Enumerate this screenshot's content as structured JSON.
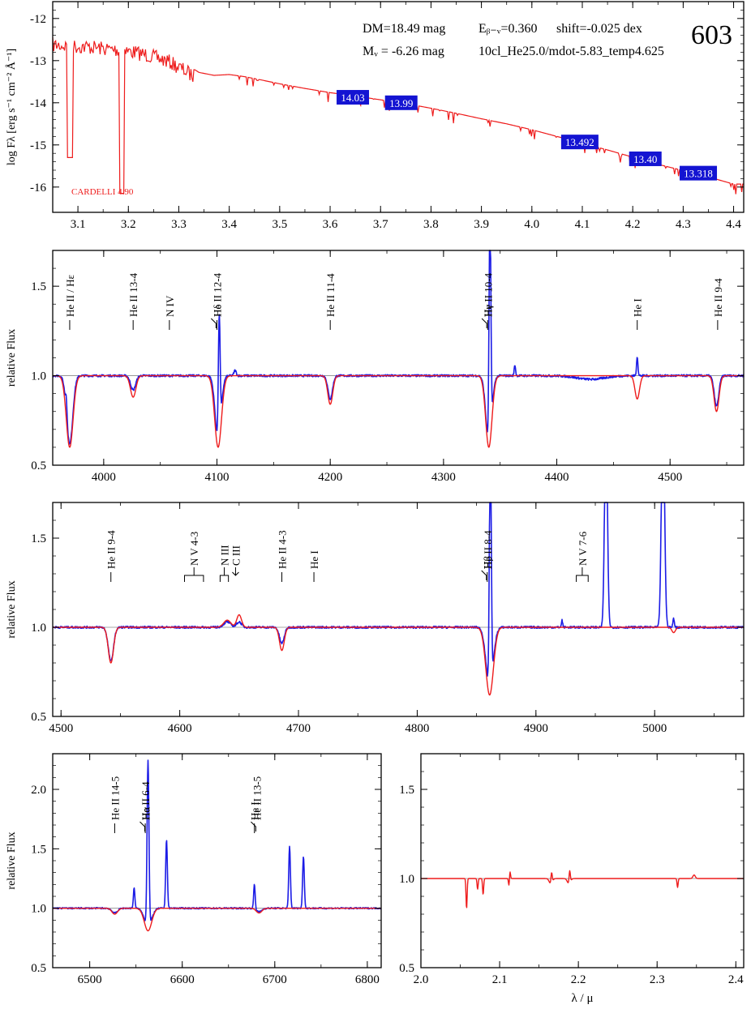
{
  "header": {
    "dm": "DM=18.49 mag",
    "mv": "Mᵥ =  -6.26 mag",
    "ebv": "Eᵦ₋ᵥ=0.360",
    "shift": "shift=-0.025 dex",
    "model": "10cl_He25.0/mdot-5.83_temp4.625",
    "star_id": "603",
    "reddening_law": "CARDELLI 4.90"
  },
  "colors": {
    "model": "#ee1c1c",
    "observed": "#1c1ce6",
    "box": "#1414d2",
    "ref": "#888888"
  },
  "chart_data": [
    {
      "id": "sed",
      "type": "line",
      "ylabel": "log Fλ [erg s⁻¹ cm⁻² Å⁻¹]",
      "xlim": [
        3.05,
        4.42
      ],
      "ylim": [
        -16.6,
        -11.6
      ],
      "xticks": [
        3.1,
        3.2,
        3.3,
        3.4,
        3.5,
        3.6,
        3.7,
        3.8,
        3.9,
        4.0,
        4.1,
        4.2,
        4.3,
        4.4
      ],
      "xticklabels": [
        "3.1",
        "3.2",
        "3.3",
        "3.4",
        "3.5",
        "3.6",
        "3.7",
        "3.8",
        "3.9",
        "4.0",
        "4.1",
        "4.2",
        "4.3",
        "4.4"
      ],
      "yticks": [
        -12,
        -13,
        -14,
        -15,
        -16
      ],
      "yticklabels": [
        "-12",
        "-13",
        "-14",
        "-15",
        "-16"
      ],
      "model_sed": {
        "x": [
          3.05,
          3.08,
          3.12,
          3.16,
          3.2,
          3.24,
          3.28,
          3.31,
          3.34,
          3.37,
          3.4,
          3.43,
          3.46,
          3.5,
          3.55,
          3.6,
          3.65,
          3.7,
          3.75,
          3.8,
          3.85,
          3.9,
          3.95,
          4.0,
          4.05,
          4.1,
          4.15,
          4.2,
          4.25,
          4.3,
          4.35,
          4.4
        ],
        "y": [
          -12.45,
          -12.48,
          -12.5,
          -12.55,
          -12.6,
          -12.7,
          -12.85,
          -13.05,
          -13.28,
          -13.35,
          -13.33,
          -13.38,
          -13.45,
          -13.55,
          -13.66,
          -13.76,
          -13.84,
          -13.93,
          -14.02,
          -14.13,
          -14.25,
          -14.38,
          -14.5,
          -14.64,
          -14.8,
          -14.96,
          -15.12,
          -15.29,
          -15.46,
          -15.61,
          -15.76,
          -15.93
        ]
      },
      "photometry": [
        {
          "x": 3.645,
          "y": -13.87,
          "label": "14.03"
        },
        {
          "x": 3.741,
          "y": -14.0,
          "label": "13.99"
        },
        {
          "x": 4.095,
          "y": -14.93,
          "label": "13.492"
        },
        {
          "x": 4.225,
          "y": -15.33,
          "label": "13.40"
        },
        {
          "x": 4.33,
          "y": -15.67,
          "label": "13.318"
        }
      ]
    },
    {
      "id": "blue-4000",
      "type": "line",
      "ylabel": "relative Flux",
      "xlim": [
        3955,
        4565
      ],
      "ylim": [
        0.5,
        1.7
      ],
      "xticks": [
        4000,
        4100,
        4200,
        4300,
        4400,
        4500
      ],
      "xticklabels": [
        "4000",
        "4100",
        "4200",
        "4300",
        "4400",
        "4500"
      ],
      "yticks": [
        0.5,
        1.0,
        1.5
      ],
      "yticklabels": [
        "0.5",
        "1.0",
        "1.5"
      ],
      "line_ids": [
        {
          "x": 3970,
          "label": "He II / Hε"
        },
        {
          "x": 4026,
          "label": "He II 13-4"
        },
        {
          "x": 4058,
          "label": "N IV"
        },
        {
          "x": 4100,
          "label": "He II 12-4"
        },
        {
          "x": 4102,
          "label": "Hδ",
          "tick": "leaning"
        },
        {
          "x": 4200,
          "label": "He II 11-4"
        },
        {
          "x": 4339,
          "label": "He II 10-4"
        },
        {
          "x": 4341,
          "label": "Hγ",
          "tick": "leaning"
        },
        {
          "x": 4471,
          "label": "He I"
        },
        {
          "x": 4542,
          "label": "He II 9-4"
        }
      ],
      "model_lines": [
        {
          "c": 3970,
          "depth": 0.4,
          "w": 3.0
        },
        {
          "c": 4026,
          "depth": 0.12,
          "w": 2.4
        },
        {
          "c": 4101,
          "depth": 0.4,
          "w": 3.0
        },
        {
          "c": 4200,
          "depth": 0.16,
          "w": 2.2
        },
        {
          "c": 4340,
          "depth": 0.4,
          "w": 2.8
        },
        {
          "c": 4471,
          "depth": 0.13,
          "w": 2.0
        },
        {
          "c": 4541,
          "depth": 0.2,
          "w": 2.2
        }
      ],
      "observed_lines": [
        {
          "c": 3970,
          "depth": 0.38,
          "w": 2.7
        },
        {
          "c": 3967,
          "depth": -0.09,
          "w": 0.6
        },
        {
          "c": 4026,
          "depth": 0.08,
          "w": 2.2
        },
        {
          "c": 4101,
          "depth": 0.36,
          "w": 2.6
        },
        {
          "c": 4102,
          "depth": -0.68,
          "w": 0.8
        },
        {
          "c": 4116,
          "depth": -0.03,
          "w": 1.0
        },
        {
          "c": 4200,
          "depth": 0.13,
          "w": 2.0
        },
        {
          "c": 4340,
          "depth": 0.38,
          "w": 2.6
        },
        {
          "c": 4341,
          "depth": -1.3,
          "w": 0.8
        },
        {
          "c": 4363,
          "depth": -0.06,
          "w": 0.6
        },
        {
          "c": 4471,
          "depth": -0.11,
          "w": 0.6
        },
        {
          "c": 4541,
          "depth": 0.17,
          "w": 2.0
        },
        {
          "c": 4430,
          "depth": 0.02,
          "w": 12.0
        }
      ]
    },
    {
      "id": "blue-4700",
      "type": "line",
      "ylabel": "relative Flux",
      "xlim": [
        4493,
        5075
      ],
      "ylim": [
        0.5,
        1.7
      ],
      "xticks": [
        4500,
        4600,
        4700,
        4800,
        4900,
        5000
      ],
      "xticklabels": [
        "4500",
        "4600",
        "4700",
        "4800",
        "4900",
        "5000"
      ],
      "yticks": [
        0.5,
        1.0,
        1.5
      ],
      "yticklabels": [
        "0.5",
        "1.0",
        "1.5"
      ],
      "line_ids": [
        {
          "x": 4542,
          "label": "He II 9-4"
        },
        {
          "x": 4604,
          "label": "N V 4-3",
          "tick": "bracket",
          "x2": 4620
        },
        {
          "x": 4634,
          "label": "N III",
          "tick": "bracket",
          "x2": 4641
        },
        {
          "x": 4647,
          "label": "C III",
          "tick": "fork"
        },
        {
          "x": 4686,
          "label": "He II 4-3"
        },
        {
          "x": 4713,
          "label": "He I"
        },
        {
          "x": 4859,
          "label": "He II 8-4"
        },
        {
          "x": 4861,
          "label": "Hβ",
          "tick": "leaning"
        },
        {
          "x": 4934,
          "label": "N V 7-6",
          "tick": "bracket",
          "x2": 4944
        }
      ],
      "model_lines": [
        {
          "c": 4542,
          "depth": 0.2,
          "w": 2.2
        },
        {
          "c": 4640,
          "depth": -0.04,
          "w": 3.0
        },
        {
          "c": 4650,
          "depth": -0.07,
          "w": 2.0
        },
        {
          "c": 4686,
          "depth": 0.13,
          "w": 2.0
        },
        {
          "c": 4861,
          "depth": 0.38,
          "w": 3.2
        },
        {
          "c": 5016,
          "depth": 0.03,
          "w": 1.5
        }
      ],
      "observed_lines": [
        {
          "c": 4542,
          "depth": 0.19,
          "w": 2.2
        },
        {
          "c": 4640,
          "depth": -0.03,
          "w": 3.0
        },
        {
          "c": 4650,
          "depth": -0.03,
          "w": 2.0
        },
        {
          "c": 4686,
          "depth": 0.09,
          "w": 2.0
        },
        {
          "c": 4861,
          "depth": 0.34,
          "w": 3.0
        },
        {
          "c": 4861.6,
          "depth": -1.4,
          "w": 0.8
        },
        {
          "c": 4922,
          "depth": -0.04,
          "w": 0.5
        },
        {
          "c": 4959,
          "depth": -1.2,
          "w": 1.2
        },
        {
          "c": 5007,
          "depth": -1.3,
          "w": 1.3
        },
        {
          "c": 5016,
          "depth": -0.05,
          "w": 0.6
        }
      ]
    },
    {
      "id": "halpha",
      "type": "line",
      "ylabel": "relative Flux",
      "xlim": [
        6460,
        6815
      ],
      "ylim": [
        0.5,
        2.3
      ],
      "xticks": [
        6500,
        6600,
        6700,
        6800
      ],
      "xticklabels": [
        "6500",
        "6600",
        "6700",
        "6800"
      ],
      "yticks": [
        0.5,
        1.0,
        1.5,
        2.0
      ],
      "yticklabels": [
        "0.5",
        "1.0",
        "1.5",
        "2.0"
      ],
      "line_ids": [
        {
          "x": 6527,
          "label": "He II 14-5"
        },
        {
          "x": 6560,
          "label": "He II 6-4"
        },
        {
          "x": 6563,
          "label": "Hα",
          "tick": "leaning"
        },
        {
          "x": 6678,
          "label": "He I"
        },
        {
          "x": 6683,
          "label": "He II 13-5",
          "tick": "leaning"
        }
      ],
      "model_lines": [
        {
          "c": 6527,
          "depth": 0.05,
          "w": 3.0
        },
        {
          "c": 6563,
          "depth": 0.19,
          "w": 4.0
        },
        {
          "c": 6683,
          "depth": 0.04,
          "w": 3.0
        }
      ],
      "observed_lines": [
        {
          "c": 6527,
          "depth": 0.04,
          "w": 3.0
        },
        {
          "c": 6548,
          "depth": -0.17,
          "w": 0.8
        },
        {
          "c": 6563,
          "depth": 0.15,
          "w": 4.0
        },
        {
          "c": 6563,
          "depth": -1.4,
          "w": 1.0
        },
        {
          "c": 6583,
          "depth": -0.58,
          "w": 0.9
        },
        {
          "c": 6678,
          "depth": -0.21,
          "w": 0.8
        },
        {
          "c": 6683,
          "depth": 0.03,
          "w": 3.0
        },
        {
          "c": 6716,
          "depth": -0.52,
          "w": 0.9
        },
        {
          "c": 6731,
          "depth": -0.44,
          "w": 0.9
        }
      ]
    },
    {
      "id": "near-ir",
      "type": "line",
      "xlabel": "λ / μ",
      "xlim": [
        2.0,
        2.41
      ],
      "ylim": [
        0.5,
        1.7
      ],
      "xticks": [
        2.0,
        2.1,
        2.2,
        2.3,
        2.4
      ],
      "xticklabels": [
        "2.0",
        "2.1",
        "2.2",
        "2.3",
        "2.4"
      ],
      "yticks": [
        0.5,
        1.0,
        1.5
      ],
      "yticklabels": [
        "0.5",
        "1.0",
        "1.5"
      ],
      "model_lines": [
        {
          "c": 2.058,
          "depth": 0.17,
          "w": 0.0007
        },
        {
          "c": 2.072,
          "depth": 0.06,
          "w": 0.0007
        },
        {
          "c": 2.079,
          "depth": 0.09,
          "w": 0.0007
        },
        {
          "c": 2.112,
          "depth": 0.05,
          "w": 0.0007
        },
        {
          "c": 2.113,
          "depth": -0.05,
          "w": 0.0007
        },
        {
          "c": 2.165,
          "depth": 0.03,
          "w": 0.002
        },
        {
          "c": 2.166,
          "depth": -0.06,
          "w": 0.0008
        },
        {
          "c": 2.188,
          "depth": 0.03,
          "w": 0.002
        },
        {
          "c": 2.189,
          "depth": -0.07,
          "w": 0.0008
        },
        {
          "c": 2.326,
          "depth": 0.05,
          "w": 0.0007
        },
        {
          "c": 2.347,
          "depth": -0.02,
          "w": 0.0015
        }
      ],
      "observed_lines": []
    }
  ]
}
